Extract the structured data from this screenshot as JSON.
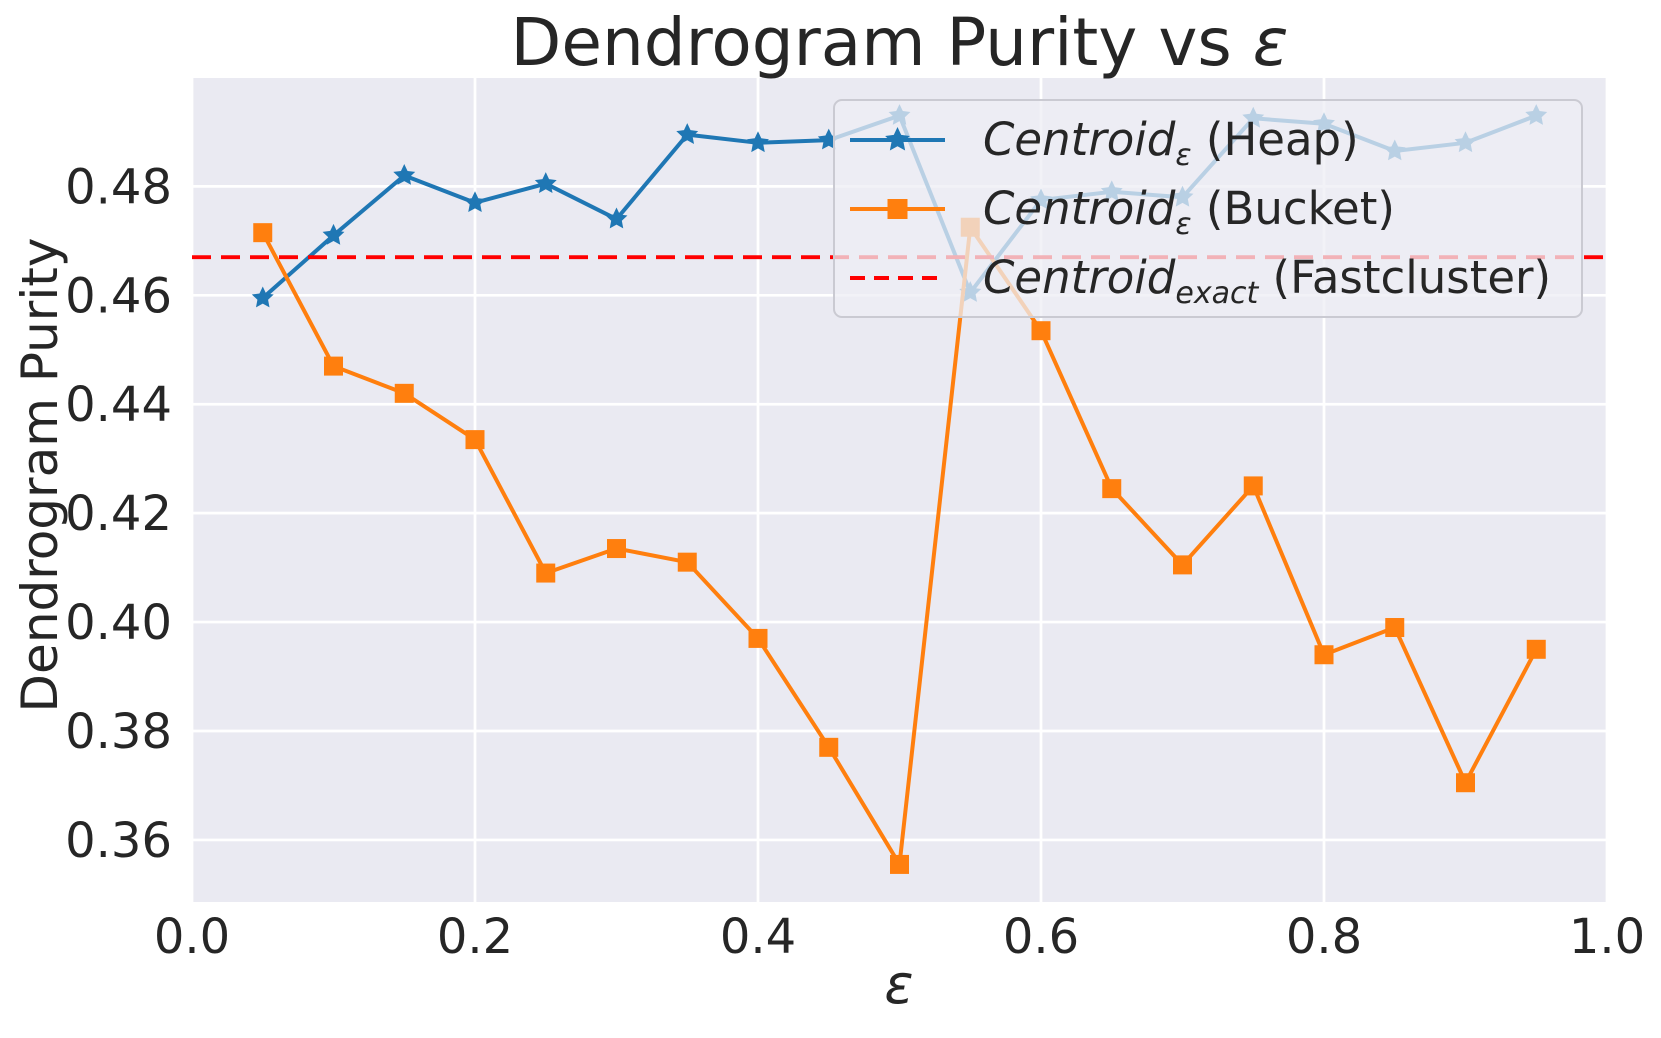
{
  "title": {
    "plain": "Dendrogram Purity vs ",
    "math": "ε"
  },
  "axes": {
    "xlabel": "ε",
    "ylabel": "Dendrogram Purity",
    "x_tick_labels": [
      "0.0",
      "0.2",
      "0.4",
      "0.6",
      "0.8",
      "1.0"
    ],
    "y_tick_labels": [
      "0.36",
      "0.38",
      "0.40",
      "0.42",
      "0.44",
      "0.46",
      "0.48"
    ]
  },
  "colors": {
    "plot_bg": "#eaeaf2",
    "grid": "#ffffff",
    "heap": "#1f77b4",
    "bucket": "#ff7f0e",
    "exact": "#ff0000",
    "text": "#262626"
  },
  "chart_data": {
    "type": "line",
    "title": "Dendrogram Purity vs ε",
    "xlabel": "ε",
    "ylabel": "Dendrogram Purity",
    "xlim": [
      0.0,
      1.0
    ],
    "ylim": [
      0.3486,
      0.4999
    ],
    "x_ticks": [
      0.0,
      0.2,
      0.4,
      0.6,
      0.8,
      1.0
    ],
    "y_ticks": [
      0.36,
      0.38,
      0.4,
      0.42,
      0.44,
      0.46,
      0.48
    ],
    "grid": true,
    "legend_position": "upper right",
    "x": [
      0.05,
      0.1,
      0.15,
      0.2,
      0.25,
      0.3,
      0.35,
      0.4,
      0.45,
      0.5,
      0.55,
      0.6,
      0.65,
      0.7,
      0.75,
      0.8,
      0.85,
      0.9,
      0.95
    ],
    "series": [
      {
        "key": "heap",
        "name": "Centroid_ε (Heap)",
        "marker": "star",
        "color": "#1f77b4",
        "values": [
          0.4595,
          0.471,
          0.482,
          0.477,
          0.4805,
          0.474,
          0.4895,
          0.488,
          0.4885,
          0.493,
          0.4605,
          0.4775,
          0.479,
          0.478,
          0.4925,
          0.4915,
          0.4865,
          0.488,
          0.493
        ]
      },
      {
        "key": "bucket",
        "name": "Centroid_ε (Bucket)",
        "marker": "square",
        "color": "#ff7f0e",
        "values": [
          0.4715,
          0.447,
          0.442,
          0.4335,
          0.409,
          0.4135,
          0.411,
          0.397,
          0.377,
          0.3555,
          0.4725,
          0.4535,
          0.4245,
          0.4105,
          0.425,
          0.394,
          0.399,
          0.3705,
          0.395
        ]
      }
    ],
    "hline": {
      "key": "exact",
      "name": "Centroid_exact (Fastcluster)",
      "value": 0.467,
      "color": "#ff0000",
      "style": "dashed"
    },
    "legend": [
      {
        "main": "Centroid",
        "sub": "ε",
        "rest": " (Heap)",
        "series": "heap",
        "marker": "star",
        "line": "solid"
      },
      {
        "main": "Centroid",
        "sub": "ε",
        "rest": " (Bucket)",
        "series": "bucket",
        "marker": "square",
        "line": "solid"
      },
      {
        "main": "Centroid",
        "sub": "exact",
        "rest": " (Fastcluster)",
        "series": "exact",
        "marker": "none",
        "line": "dashed"
      }
    ]
  }
}
